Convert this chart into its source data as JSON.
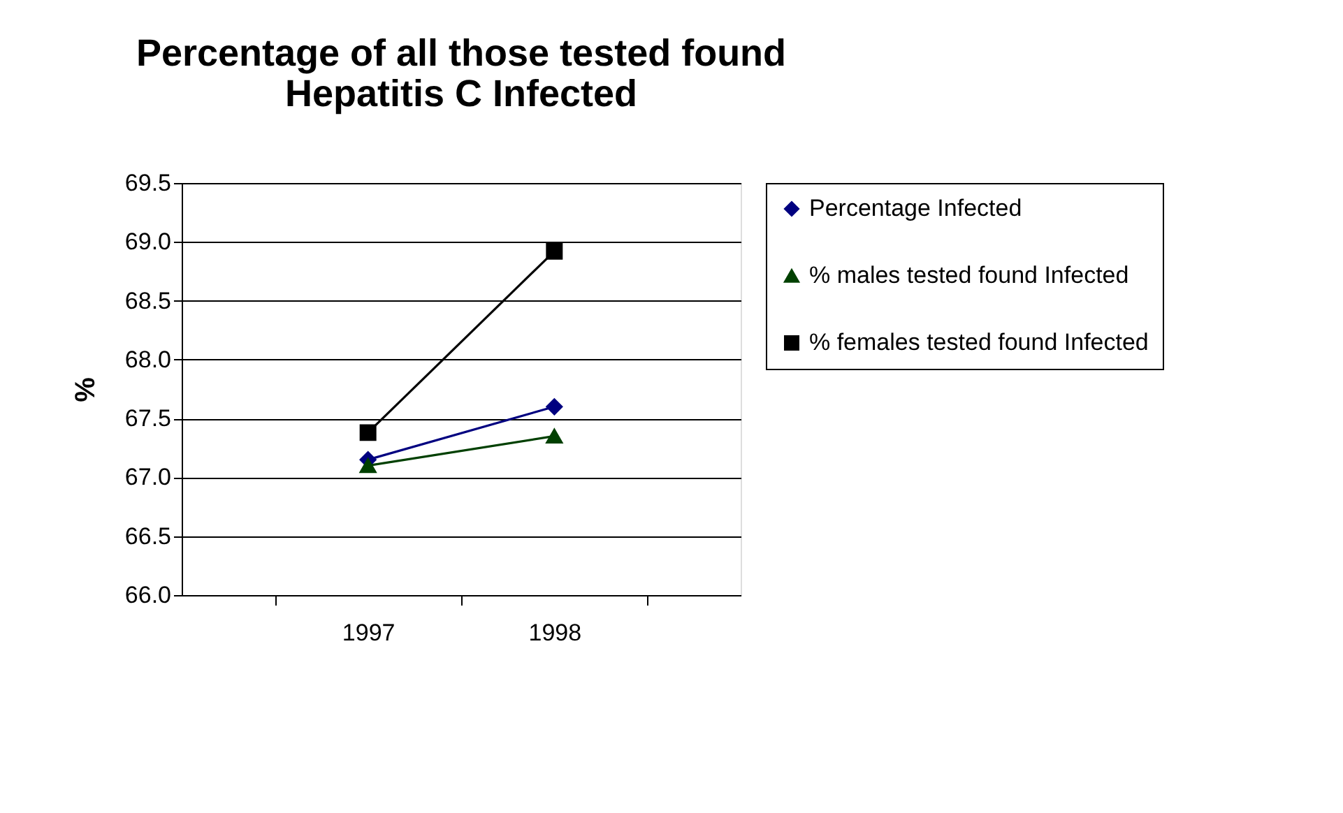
{
  "chart_data": {
    "type": "line",
    "title": [
      "Percentage of all those tested found",
      "Hepatitis C Infected"
    ],
    "ylabel": "%",
    "categories": [
      "1997",
      "1998"
    ],
    "series": [
      {
        "name": "Percentage Infected",
        "color": "#000080",
        "marker": "diamond",
        "values": [
          67.15,
          67.6
        ]
      },
      {
        "name": "% males tested found Infected",
        "color": "#004000",
        "marker": "triangle",
        "values": [
          67.1,
          67.35
        ]
      },
      {
        "name": "% females tested found Infected",
        "color": "#000000",
        "marker": "square",
        "values": [
          67.38,
          68.92
        ]
      }
    ],
    "ylim": [
      66.0,
      69.5
    ],
    "yticks": [
      {
        "value": 66.0,
        "label": "66.0"
      },
      {
        "value": 66.5,
        "label": "66.5"
      },
      {
        "value": 67.0,
        "label": "67.0"
      },
      {
        "value": 67.5,
        "label": "67.5"
      },
      {
        "value": 68.0,
        "label": "68.0"
      },
      {
        "value": 68.5,
        "label": "68.5"
      },
      {
        "value": 69.0,
        "label": "69.0"
      },
      {
        "value": 69.5,
        "label": "69.5"
      }
    ],
    "grid": "y",
    "legend": "right",
    "line_style": "solid"
  }
}
